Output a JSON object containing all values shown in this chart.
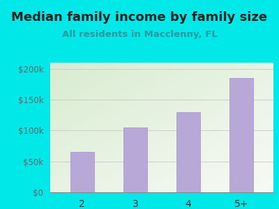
{
  "title": "Median family income by family size",
  "subtitle": "All residents in Macclenny, FL",
  "categories": [
    "2",
    "3",
    "4",
    "5+"
  ],
  "values": [
    65000,
    105000,
    130000,
    185000
  ],
  "bar_color": "#b8a8d8",
  "bar_edge_color": "#a090c8",
  "title_fontsize": 13,
  "title_color": "#222222",
  "subtitle_fontsize": 9.5,
  "subtitle_color": "#2a9a9a",
  "tick_color": "#666666",
  "xtick_color": "#333333",
  "ylim": [
    0,
    210000
  ],
  "yticks": [
    0,
    50000,
    100000,
    150000,
    200000
  ],
  "ytick_labels": [
    "$0",
    "$50k",
    "$100k",
    "$150k",
    "$200k"
  ],
  "background_outer": "#00e8e8",
  "bg_color_top": "#d8ecd0",
  "bg_color_bottom": "#f4f8f0",
  "grid_color": "#cccccc"
}
